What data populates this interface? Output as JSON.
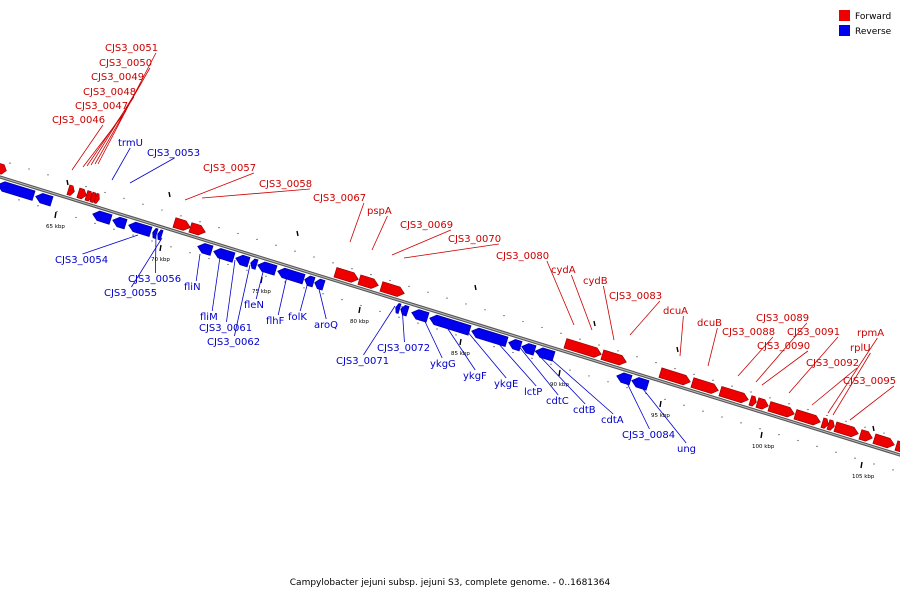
{
  "legend": {
    "forward": {
      "label": "Forward",
      "color": "#ee0000"
    },
    "reverse": {
      "label": "Reverse",
      "color": "#0000ee"
    }
  },
  "caption": "Campylobacter jejuni subsp. jejuni S3, complete genome. - 0..1681364",
  "scale_labels": [
    "65 kbp",
    "70 kbp",
    "75 kbp",
    "80 kbp",
    "85 kbp",
    "90 kbp",
    "95 kbp",
    "100 kbp",
    "105 kbp"
  ],
  "genes": [
    {
      "name": "CJS3_0046",
      "strand": "forward"
    },
    {
      "name": "CJS3_0047",
      "strand": "forward"
    },
    {
      "name": "CJS3_0048",
      "strand": "forward"
    },
    {
      "name": "CJS3_0049",
      "strand": "forward"
    },
    {
      "name": "CJS3_0050",
      "strand": "forward"
    },
    {
      "name": "CJS3_0051",
      "strand": "forward"
    },
    {
      "name": "trmU",
      "strand": "reverse"
    },
    {
      "name": "CJS3_0053",
      "strand": "reverse"
    },
    {
      "name": "CJS3_0057",
      "strand": "forward"
    },
    {
      "name": "CJS3_0058",
      "strand": "forward"
    },
    {
      "name": "CJS3_0054",
      "strand": "reverse"
    },
    {
      "name": "CJS3_0056",
      "strand": "reverse"
    },
    {
      "name": "CJS3_0055",
      "strand": "reverse"
    },
    {
      "name": "fliN",
      "strand": "reverse"
    },
    {
      "name": "fliM",
      "strand": "reverse"
    },
    {
      "name": "CJS3_0061",
      "strand": "reverse"
    },
    {
      "name": "CJS3_0062",
      "strand": "reverse"
    },
    {
      "name": "fleN",
      "strand": "reverse"
    },
    {
      "name": "flhF",
      "strand": "reverse"
    },
    {
      "name": "folK",
      "strand": "reverse"
    },
    {
      "name": "aroQ",
      "strand": "reverse"
    },
    {
      "name": "CJS3_0067",
      "strand": "forward"
    },
    {
      "name": "pspA",
      "strand": "forward"
    },
    {
      "name": "CJS3_0069",
      "strand": "forward"
    },
    {
      "name": "CJS3_0070",
      "strand": "forward"
    },
    {
      "name": "CJS3_0071",
      "strand": "reverse"
    },
    {
      "name": "CJS3_0072",
      "strand": "reverse"
    },
    {
      "name": "ykgG",
      "strand": "reverse"
    },
    {
      "name": "ykgF",
      "strand": "reverse"
    },
    {
      "name": "ykgE",
      "strand": "reverse"
    },
    {
      "name": "lctP",
      "strand": "reverse"
    },
    {
      "name": "cdtC",
      "strand": "reverse"
    },
    {
      "name": "cdtB",
      "strand": "reverse"
    },
    {
      "name": "cdtA",
      "strand": "reverse"
    },
    {
      "name": "CJS3_0080",
      "strand": "forward"
    },
    {
      "name": "cydA",
      "strand": "forward"
    },
    {
      "name": "cydB",
      "strand": "forward"
    },
    {
      "name": "CJS3_0083",
      "strand": "forward"
    },
    {
      "name": "CJS3_0084",
      "strand": "reverse"
    },
    {
      "name": "ung",
      "strand": "reverse"
    },
    {
      "name": "dcuA",
      "strand": "forward"
    },
    {
      "name": "dcuB",
      "strand": "forward"
    },
    {
      "name": "CJS3_0088",
      "strand": "forward"
    },
    {
      "name": "CJS3_0089",
      "strand": "forward"
    },
    {
      "name": "CJS3_0090",
      "strand": "forward"
    },
    {
      "name": "CJS3_0091",
      "strand": "forward"
    },
    {
      "name": "CJS3_0092",
      "strand": "forward"
    },
    {
      "name": "rpmA",
      "strand": "forward"
    },
    {
      "name": "rplU",
      "strand": "forward"
    },
    {
      "name": "CJS3_0095",
      "strand": "forward"
    }
  ]
}
